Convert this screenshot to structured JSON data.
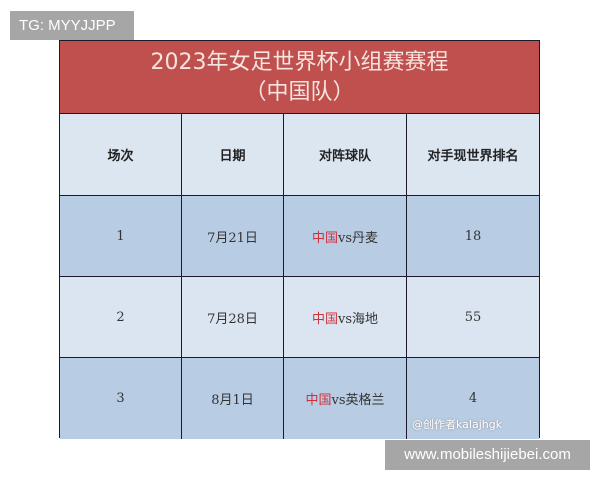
{
  "watermark_top": "TG: MYYJJPP",
  "watermark_bottom": "www.mobileshijiebei.com",
  "watermark_author": "@创作者kalajhgk",
  "title_line1": "2023年女足世界杯小组赛赛程",
  "title_line2": "（中国队）",
  "headers": [
    "场次",
    "日期",
    "对阵球队",
    "对手现世界排名"
  ],
  "rows": [
    {
      "match": "1",
      "date": "7月21日",
      "team": "中国",
      "vs": "vs丹麦",
      "rank": "18"
    },
    {
      "match": "2",
      "date": "7月28日",
      "team": "中国",
      "vs": "vs海地",
      "rank": "55"
    },
    {
      "match": "3",
      "date": "8月1日",
      "team": "中国",
      "vs": "vs英格兰",
      "rank": "4"
    }
  ],
  "colors": {
    "title_bg": "#c0504d",
    "header_bg": "#dce6f1",
    "row_dark": "#b8cce4",
    "row_light": "#dbe5f1",
    "highlight": "#d0303a"
  }
}
